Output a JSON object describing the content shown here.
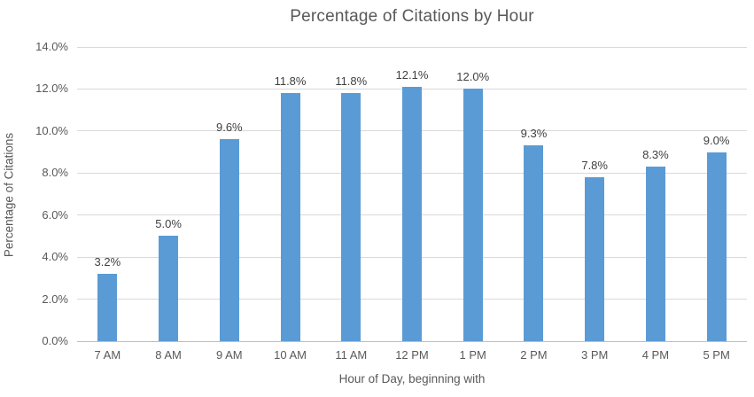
{
  "chart_data": {
    "type": "bar",
    "title": "Percentage of Citations by Hour",
    "xlabel": "Hour of Day, beginning with",
    "ylabel": "Percentage of Citations",
    "categories": [
      "7 AM",
      "8 AM",
      "9 AM",
      "10 AM",
      "11 AM",
      "12 PM",
      "1 PM",
      "2 PM",
      "3 PM",
      "4 PM",
      "5 PM"
    ],
    "values": [
      3.2,
      5.0,
      9.6,
      11.8,
      11.8,
      12.1,
      12.0,
      9.3,
      7.8,
      8.3,
      9.0
    ],
    "data_labels": [
      "3.2%",
      "5.0%",
      "9.6%",
      "11.8%",
      "11.8%",
      "12.1%",
      "12.0%",
      "9.3%",
      "7.8%",
      "8.3%",
      "9.0%"
    ],
    "ylim": [
      0,
      14
    ],
    "ytick_step": 2,
    "ytick_labels": [
      "0.0%",
      "2.0%",
      "4.0%",
      "6.0%",
      "8.0%",
      "10.0%",
      "12.0%",
      "14.0%"
    ],
    "grid": true,
    "legend": false,
    "colors": {
      "bar": "#5b9bd5",
      "gridline": "#d9d9d9",
      "axis_line": "#bfbfbf",
      "axis_text": "#595959",
      "data_label_text": "#404040",
      "title_text": "#595959"
    }
  }
}
